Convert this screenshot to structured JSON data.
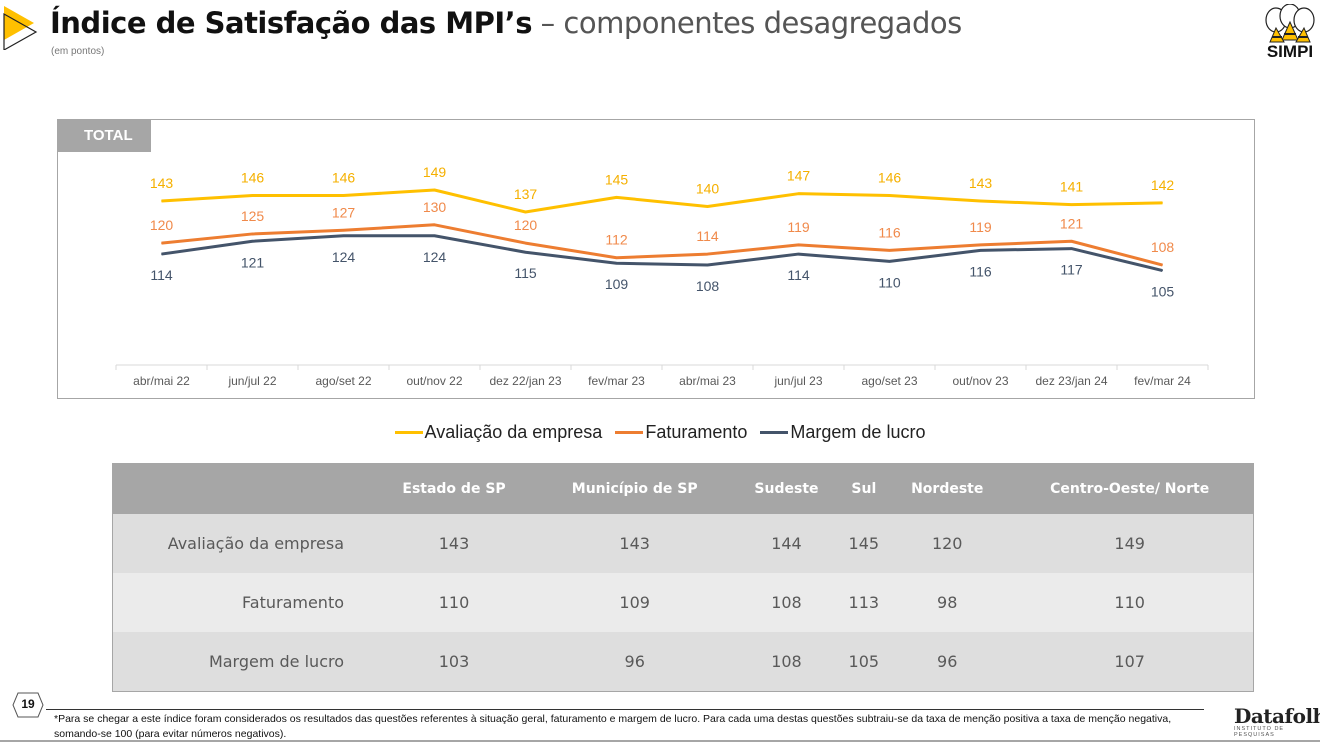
{
  "header": {
    "title_bold": "Índice de Satisfação das MPI’s",
    "title_light": " – componentes desagregados",
    "subtitle": "(em pontos)",
    "logo_text": "SIMPI"
  },
  "chart_tag": "TOTAL",
  "chart_data": {
    "type": "line",
    "title": "TOTAL",
    "xlabel": "",
    "ylabel": "",
    "categories": [
      "abr/mai 22",
      "jun/jul 22",
      "ago/set 22",
      "out/nov 22",
      "dez 22/jan 23",
      "fev/mar 23",
      "abr/mai 23",
      "jun/jul 23",
      "ago/set 23",
      "out/nov 23",
      "dez 23/jan 24",
      "fev/mar 24"
    ],
    "series": [
      {
        "name": "Avaliação da empresa",
        "color": "#FFC000",
        "label_color": "#F5B000",
        "values": [
          143,
          146,
          146,
          149,
          137,
          145,
          140,
          147,
          146,
          143,
          141,
          142
        ]
      },
      {
        "name": "Faturamento",
        "color": "#ED7D31",
        "label_color": "#F08A4B",
        "values": [
          120,
          125,
          127,
          130,
          120,
          112,
          114,
          119,
          116,
          119,
          121,
          108
        ]
      },
      {
        "name": "Margem de lucro",
        "color": "#44546A",
        "label_color": "#44546A",
        "values": [
          114,
          121,
          124,
          124,
          115,
          109,
          108,
          114,
          110,
          116,
          117,
          105
        ]
      }
    ],
    "grid": false,
    "legend_position": "bottom"
  },
  "table": {
    "columns": [
      "",
      "Estado de  SP",
      "Município de SP",
      "Sudeste",
      "Sul",
      "Nordeste",
      "Centro-Oeste/ Norte"
    ],
    "rows": [
      {
        "label": "Avaliação da empresa",
        "values": [
          "143",
          "143",
          "144",
          "145",
          "120",
          "149"
        ]
      },
      {
        "label": "Faturamento",
        "values": [
          "110",
          "109",
          "108",
          "113",
          "98",
          "110"
        ]
      },
      {
        "label": "Margem de lucro",
        "values": [
          "103",
          "96",
          "108",
          "105",
          "96",
          "107"
        ]
      }
    ]
  },
  "footer": {
    "page_number": "19",
    "footnote": "*Para se chegar a este índice foram considerados  os resultados das questões referentes à situação geral, faturamento e margem de lucro. Para cada uma destas questões subtraiu-se  da taxa de menção positiva  a taxa de menção negativa, somando-se  100 (para evitar números negativos).",
    "brand_name": "Datafolha",
    "brand_sub": "INSTITUTO DE PESQUISAS"
  }
}
